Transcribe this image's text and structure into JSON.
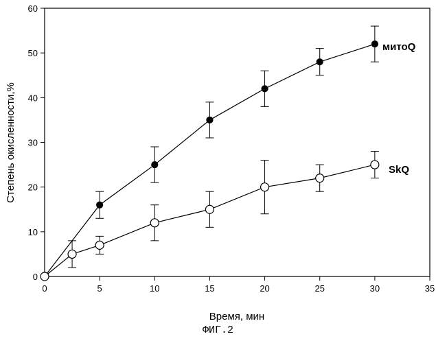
{
  "chart_data": {
    "type": "line",
    "xlabel": "Время, мин",
    "ylabel": "Степень окисленности,%",
    "xlim": [
      0,
      35
    ],
    "ylim": [
      0,
      60
    ],
    "xticks": [
      0,
      5,
      10,
      15,
      20,
      25,
      30,
      35
    ],
    "yticks": [
      0,
      10,
      20,
      30,
      40,
      50,
      60
    ],
    "grid": false,
    "legend": "none",
    "series": [
      {
        "name": "митоQ",
        "marker": "filled-circle",
        "color": "#000000",
        "x": [
          0,
          5,
          10,
          15,
          20,
          25,
          30
        ],
        "y": [
          0,
          16,
          25,
          35,
          42,
          48,
          52
        ],
        "err_low": [
          0,
          3,
          4,
          4,
          4,
          3,
          4
        ],
        "err_high": [
          0,
          3,
          4,
          4,
          4,
          3,
          4
        ]
      },
      {
        "name": "SkQ",
        "marker": "open-circle",
        "color": "#000000",
        "x": [
          0,
          2.5,
          5,
          10,
          15,
          20,
          25,
          30
        ],
        "y": [
          0,
          5,
          7,
          12,
          15,
          20,
          22,
          25
        ],
        "err_low": [
          0,
          3,
          2,
          4,
          4,
          6,
          3,
          3
        ],
        "err_high": [
          0,
          3,
          2,
          4,
          4,
          6,
          3,
          3
        ]
      }
    ]
  },
  "caption": "ФИГ.2"
}
